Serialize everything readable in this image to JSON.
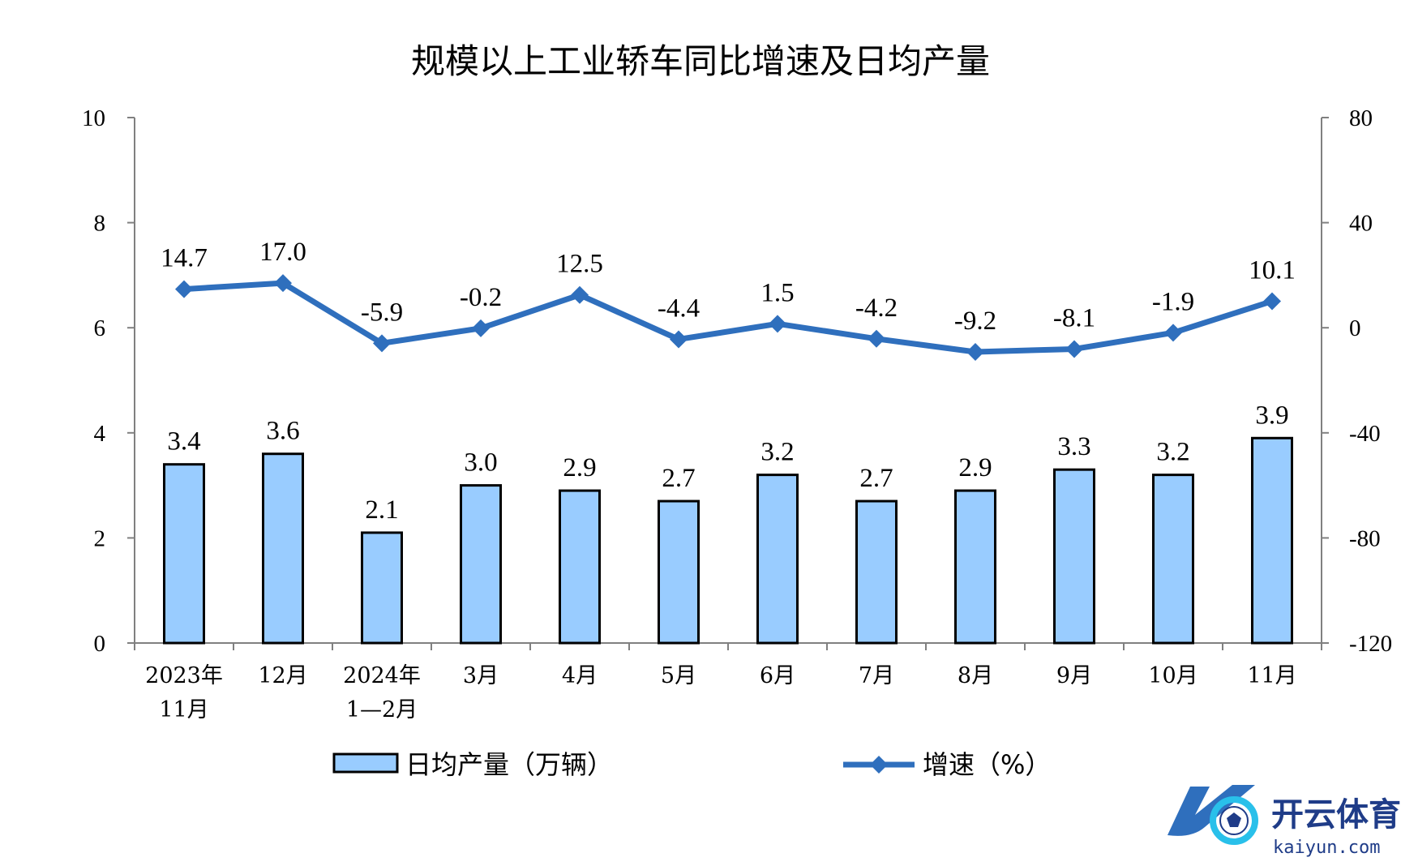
{
  "colors": {
    "bar_fill": "#99ccff",
    "bar_stroke": "#000000",
    "line": "#2f6fbd",
    "axis": "#808080",
    "logo_blue": "#2f6fbd",
    "logo_cyan": "#29c0ea",
    "logo_text": "#1f3c88"
  },
  "chart_data": {
    "type": "bar+line",
    "title": "规模以上工业轿车同比增速及日均产量",
    "categories": [
      [
        "2023年",
        "11月"
      ],
      [
        "12月"
      ],
      [
        "2024年",
        "1—2月"
      ],
      [
        "3月"
      ],
      [
        "4月"
      ],
      [
        "5月"
      ],
      [
        "6月"
      ],
      [
        "7月"
      ],
      [
        "8月"
      ],
      [
        "9月"
      ],
      [
        "10月"
      ],
      [
        "11月"
      ]
    ],
    "series": [
      {
        "name": "日均产量（万辆）",
        "type": "bar",
        "axis": "left",
        "values": [
          3.4,
          3.6,
          2.1,
          3.0,
          2.9,
          2.7,
          3.2,
          2.7,
          2.9,
          3.3,
          3.2,
          3.9
        ],
        "labels": [
          "3.4",
          "3.6",
          "2.1",
          "3.0",
          "2.9",
          "2.7",
          "3.2",
          "2.7",
          "2.9",
          "3.3",
          "3.2",
          "3.9"
        ]
      },
      {
        "name": "增速（%）",
        "type": "line",
        "axis": "right",
        "marker": "diamond",
        "values": [
          14.7,
          17.0,
          -5.9,
          -0.2,
          12.5,
          -4.4,
          1.5,
          -4.2,
          -9.2,
          -8.1,
          -1.9,
          10.1
        ],
        "labels": [
          "14.7",
          "17.0",
          "-5.9",
          "-0.2",
          "12.5",
          "-4.4",
          "1.5",
          "-4.2",
          "-9.2",
          "-8.1",
          "-1.9",
          "10.1"
        ]
      }
    ],
    "y_left": {
      "min": 0,
      "max": 10,
      "ticks": [
        0,
        2,
        4,
        6,
        8,
        10
      ]
    },
    "y_right": {
      "min": -120,
      "max": 80,
      "ticks": [
        -120,
        -80,
        -40,
        0,
        40,
        80
      ]
    },
    "legend": {
      "position": "bottom"
    }
  },
  "watermark": {
    "logo_letter": "K",
    "name": "开云体育",
    "site": "kaiyun.com"
  }
}
